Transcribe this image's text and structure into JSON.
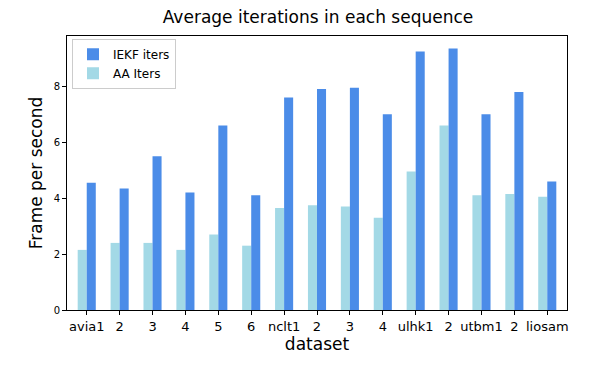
{
  "chart_data": {
    "type": "bar",
    "title": "Average iterations in each sequence",
    "x_label": "dataset",
    "y_label": "Frame per second",
    "categories": [
      "avia1",
      "2",
      "3",
      "4",
      "5",
      "6",
      "nclt1",
      "2",
      "3",
      "4",
      "ulhk1",
      "2",
      "utbm1",
      "2",
      "liosam"
    ],
    "series": [
      {
        "name": "IEKF iters",
        "color": "#4b8ce8",
        "values": [
          4.55,
          4.35,
          5.5,
          4.2,
          6.6,
          4.1,
          7.6,
          7.9,
          7.95,
          7.0,
          9.25,
          9.35,
          7.0,
          7.8,
          4.6
        ]
      },
      {
        "name": "AA Iters",
        "color": "#a3d9e6",
        "values": [
          2.15,
          2.4,
          2.4,
          2.15,
          2.7,
          2.3,
          3.65,
          3.75,
          3.7,
          3.3,
          4.95,
          6.6,
          4.1,
          4.15,
          4.05
        ]
      }
    ],
    "ylim": [
      0,
      9.8
    ],
    "yticks": [
      0,
      2,
      4,
      6,
      8
    ],
    "grid": false,
    "legend": "upper left"
  }
}
